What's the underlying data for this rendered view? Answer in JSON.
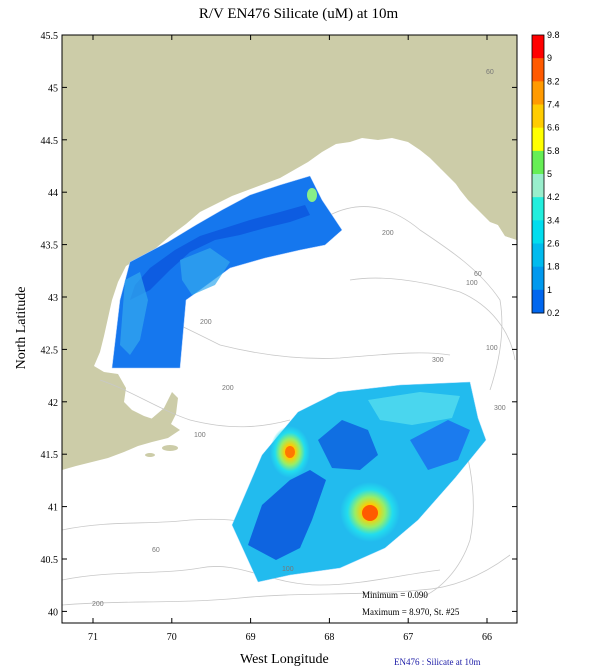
{
  "title": "R/V EN476 Silicate (uM) at 10m",
  "x_axis_label": "West Longitude",
  "y_axis_label": "North Latitude",
  "x_ticks": [
    "71",
    "70",
    "69",
    "68",
    "67",
    "66"
  ],
  "y_ticks": [
    "45.5",
    "45",
    "44.5",
    "44",
    "43.5",
    "43",
    "42.5",
    "42",
    "41.5",
    "41",
    "40.5",
    "40"
  ],
  "colorbar": {
    "labels": [
      "9.8",
      "9",
      "8.2",
      "7.4",
      "6.6",
      "5.8",
      "5",
      "4.2",
      "3.4",
      "2.6",
      "1.8",
      "1",
      "0.2"
    ],
    "colors": [
      "#ff0000",
      "#ff5a00",
      "#ff9a00",
      "#ffcc00",
      "#ffff00",
      "#66ee55",
      "#99eecc",
      "#22eedd",
      "#00ddee",
      "#00bbee",
      "#0099ee",
      "#0066ee",
      "#0033ee"
    ]
  },
  "bathymetry_labels": [
    "60",
    "200",
    "60",
    "100",
    "200",
    "300",
    "100",
    "200",
    "300",
    "100",
    "60",
    "100",
    "200"
  ],
  "stats": {
    "minimum": "Minimum = 0.090",
    "maximum": "Maximum = 8.970, St. #25"
  },
  "footer": "EN476 : Silicate at 10m",
  "colors": {
    "land": "#cccca8",
    "contour": "#c8c8c8",
    "frame": "#000000"
  }
}
